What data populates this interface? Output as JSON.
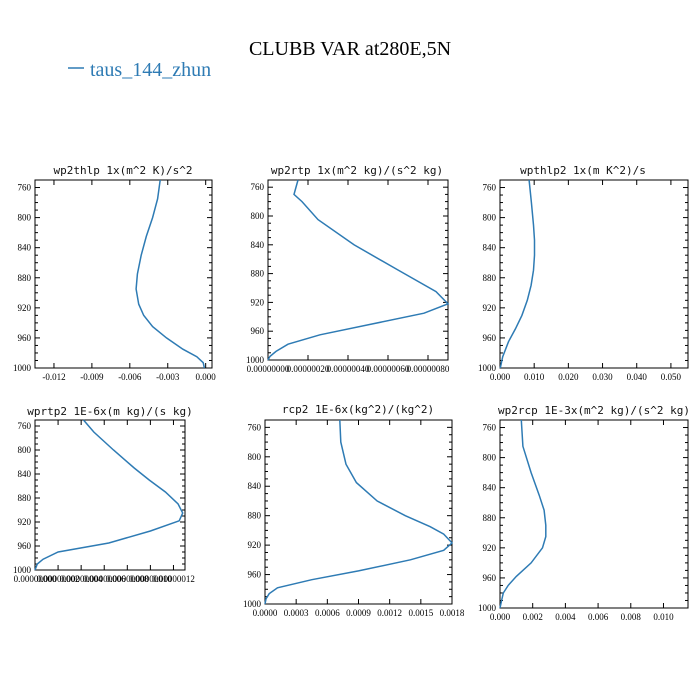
{
  "figure": {
    "title": "CLUBB VAR at280E,5N",
    "legend": {
      "label": "taus_144_zhun",
      "color": "#2e7bb4"
    }
  },
  "chart_data": [
    {
      "type": "line",
      "title": "wp2thlp  1x(m^2 K)/s^2",
      "xticks": [
        "-0.012",
        "-0.009",
        "-0.006",
        "-0.003",
        "0.000"
      ],
      "xtick_values": [
        -0.012,
        -0.009,
        -0.006,
        -0.003,
        0.0
      ],
      "xlim": [
        -0.0135,
        0.0005
      ],
      "yticks": [
        "760",
        "800",
        "840",
        "880",
        "920",
        "960",
        "1000"
      ],
      "ylim": [
        750,
        1000
      ],
      "y_inverted": true,
      "series": [
        {
          "x": [
            -0.0036,
            -0.0038,
            -0.0042,
            -0.0047,
            -0.0051,
            -0.0054,
            -0.0055,
            -0.0053,
            -0.0049,
            -0.0042,
            -0.0031,
            -0.0018,
            -0.0007,
            -0.0002,
            -0.0001
          ],
          "y": [
            750,
            775,
            800,
            825,
            850,
            875,
            895,
            915,
            930,
            945,
            960,
            975,
            985,
            993,
            1000
          ],
          "color": "#2e7bb4"
        }
      ]
    },
    {
      "type": "line",
      "title": "wp2rtp  1x(m^2 kg)/(s^2 kg)",
      "xticks": [
        "0.00000000",
        "0.00000020",
        "0.00000040",
        "0.00000060",
        "0.00000080"
      ],
      "xtick_values": [
        0,
        2e-07,
        4e-07,
        6e-07,
        8e-07
      ],
      "xlim": [
        0,
        9e-07
      ],
      "yticks": [
        "760",
        "800",
        "840",
        "880",
        "920",
        "960",
        "1000"
      ],
      "ylim": [
        750,
        1000
      ],
      "y_inverted": true,
      "series": [
        {
          "x": [
            1.5e-07,
            1.3e-07,
            1.7e-07,
            2.5e-07,
            4.3e-07,
            6.5e-07,
            8.4e-07,
            9e-07,
            7.8e-07,
            5.2e-07,
            2.6e-07,
            1e-07,
            4e-08,
            1e-08,
            0
          ],
          "y": [
            750,
            770,
            780,
            805,
            840,
            875,
            905,
            922,
            935,
            950,
            965,
            978,
            988,
            995,
            1000
          ],
          "color": "#2e7bb4"
        }
      ]
    },
    {
      "type": "line",
      "title": "wpthlp2  1x(m K^2)/s",
      "xticks": [
        "0.000",
        "0.010",
        "0.020",
        "0.030",
        "0.040",
        "0.050"
      ],
      "xtick_values": [
        0,
        0.01,
        0.02,
        0.03,
        0.04,
        0.05
      ],
      "xlim": [
        0,
        0.055
      ],
      "yticks": [
        "760",
        "800",
        "840",
        "880",
        "920",
        "960",
        "1000"
      ],
      "ylim": [
        750,
        1000
      ],
      "y_inverted": true,
      "series": [
        {
          "x": [
            0.0085,
            0.0092,
            0.0098,
            0.0101,
            0.0101,
            0.0098,
            0.0091,
            0.008,
            0.0064,
            0.0045,
            0.0025,
            0.0008,
            0.0001
          ],
          "y": [
            750,
            780,
            810,
            830,
            850,
            870,
            890,
            910,
            930,
            948,
            965,
            985,
            1000
          ],
          "color": "#2e7bb4"
        }
      ]
    },
    {
      "type": "line",
      "title": "wprtp2  1E-6x(m kg)/(s kg)",
      "xticks": [
        "0.00000000",
        "0.00000002",
        "0.00000004",
        "0.00000006",
        "0.00000008",
        "0.00000010",
        "0.00000012"
      ],
      "xtick_values": [
        0,
        2e-08,
        4e-08,
        6e-08,
        8e-08,
        1e-07,
        1.2e-07
      ],
      "xlim": [
        0,
        1.3e-07
      ],
      "yticks": [
        "760",
        "800",
        "840",
        "880",
        "920",
        "960",
        "1000"
      ],
      "ylim": [
        750,
        1000
      ],
      "y_inverted": true,
      "series": [
        {
          "x": [
            4.2e-08,
            5.1e-08,
            6.8e-08,
            8.6e-08,
            9.9e-08,
            1.13e-07,
            1.24e-07,
            1.28e-07,
            1.25e-07,
            1e-07,
            6.4e-08,
            2e-08,
            7e-09,
            2e-09,
            0
          ],
          "y": [
            750,
            770,
            800,
            830,
            850,
            870,
            890,
            905,
            918,
            935,
            955,
            970,
            982,
            990,
            1000
          ],
          "color": "#2e7bb4"
        }
      ]
    },
    {
      "type": "line",
      "title": "rcp2  1E-6x(kg^2)/(kg^2)",
      "xticks": [
        "0.0000",
        "0.0003",
        "0.0006",
        "0.0009",
        "0.0012",
        "0.0015",
        "0.0018"
      ],
      "xtick_values": [
        0,
        0.0003,
        0.0006,
        0.0009,
        0.0012,
        0.0015,
        0.0018
      ],
      "xlim": [
        0,
        0.0018
      ],
      "yticks": [
        "760",
        "800",
        "840",
        "880",
        "920",
        "960",
        "1000"
      ],
      "ylim": [
        750,
        1000
      ],
      "y_inverted": true,
      "series": [
        {
          "x": [
            0.00072,
            0.00073,
            0.00078,
            0.00088,
            0.00108,
            0.00135,
            0.00159,
            0.00172,
            0.0018,
            0.00172,
            0.0014,
            0.0009,
            0.00045,
            0.00012,
            4e-05,
            1e-05,
            0
          ],
          "y": [
            750,
            780,
            810,
            835,
            860,
            880,
            895,
            905,
            917,
            927,
            940,
            955,
            967,
            978,
            986,
            993,
            1000
          ],
          "color": "#2e7bb4"
        }
      ]
    },
    {
      "type": "line",
      "title": "wp2rcp  1E-3x(m^2 kg)/(s^2 kg)",
      "xticks": [
        "0.000",
        "0.002",
        "0.004",
        "0.006",
        "0.008",
        "0.010"
      ],
      "xtick_values": [
        0,
        0.002,
        0.004,
        0.006,
        0.008,
        0.01
      ],
      "xlim": [
        0,
        0.0115
      ],
      "yticks": [
        "760",
        "800",
        "840",
        "880",
        "920",
        "960",
        "1000"
      ],
      "ylim": [
        750,
        1000
      ],
      "y_inverted": true,
      "series": [
        {
          "x": [
            0.0013,
            0.0014,
            0.0019,
            0.0024,
            0.0027,
            0.0028,
            0.0028,
            0.0026,
            0.0019,
            0.001,
            0.0005,
            0.0002,
            0.0001,
            0
          ],
          "y": [
            750,
            785,
            820,
            850,
            870,
            890,
            905,
            920,
            940,
            958,
            970,
            980,
            990,
            1000
          ],
          "color": "#2e7bb4"
        }
      ]
    }
  ]
}
